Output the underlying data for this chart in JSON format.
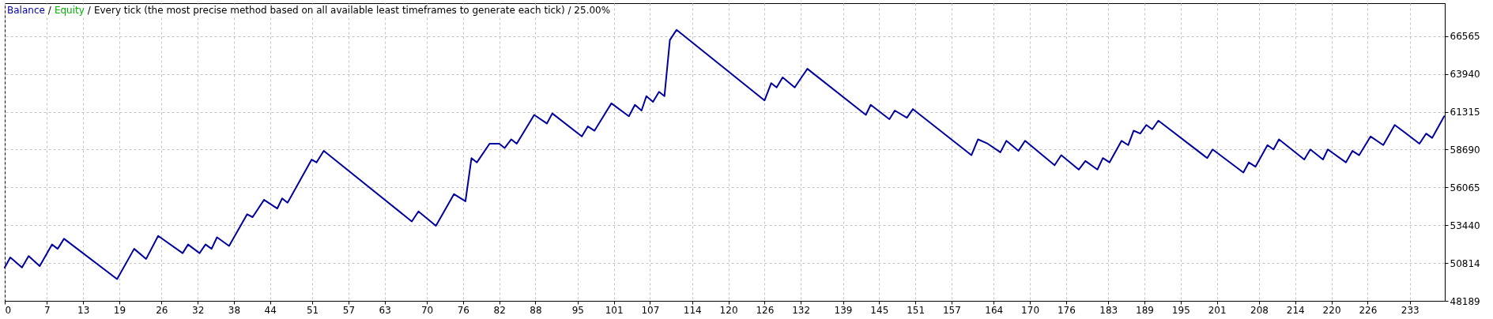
{
  "chart_data": {
    "type": "line",
    "title": "Every tick (the most precise method based on all available least timeframes to generate each tick) / 25.00%",
    "annotations": [
      "/",
      "/"
    ],
    "x": [
      0,
      0.92,
      2.86,
      3.96,
      5.8,
      7.83,
      8.78,
      9.83,
      18.63,
      21.46,
      23.45,
      25.44,
      29.5,
      30.4,
      32.3,
      33.3,
      34.3,
      35.2,
      37.2,
      40.2,
      41.1,
      43.0,
      45.2,
      46.0,
      46.9,
      50.9,
      51.7,
      52.9,
      67.5,
      68.6,
      71.5,
      74.5,
      76.4,
      77.4,
      78.3,
      80.4,
      82.0,
      82.9,
      84.0,
      84.9,
      87.8,
      89.9,
      90.8,
      95.7,
      96.7,
      97.8,
      100.6,
      103.5,
      104.5,
      105.6,
      106.4,
      107.5,
      108.5,
      109.4,
      110.3,
      111.4,
      126.0,
      127.1,
      128.0,
      129.0,
      131.0,
      133.1,
      142.8,
      143.6,
      146.7,
      147.6,
      149.6,
      150.6,
      160.3,
      161.4,
      163.0,
      165.1,
      166.1,
      168.1,
      169.2,
      174.1,
      175.2,
      178.1,
      179.2,
      181.2,
      182.1,
      183.2,
      185.2,
      186.3,
      187.2,
      188.3,
      189.3,
      190.3,
      191.3,
      199.4,
      200.3,
      205.4,
      206.3,
      207.4,
      209.4,
      210.4,
      211.3,
      215.5,
      216.5,
      218.6,
      219.4,
      222.4,
      223.5,
      224.6,
      226.5,
      228.6,
      230.5,
      234.6,
      235.7,
      236.7,
      238.7
    ],
    "series": [
      {
        "name": "Balance",
        "color": "#0000a0",
        "values": [
          50500,
          51200,
          50500,
          51300,
          50600,
          52100,
          51800,
          52500,
          49700,
          51800,
          51100,
          52700,
          51500,
          52100,
          51500,
          52100,
          51800,
          52600,
          52000,
          54200,
          54000,
          55200,
          54600,
          55300,
          55000,
          58000,
          57800,
          58600,
          53700,
          54400,
          53400,
          55600,
          55100,
          58100,
          57800,
          59100,
          59100,
          58800,
          59400,
          59100,
          61100,
          60500,
          61200,
          59600,
          60300,
          60000,
          61900,
          61000,
          61800,
          61400,
          62400,
          62000,
          62700,
          62400,
          66300,
          67000,
          62100,
          63300,
          63000,
          63700,
          63000,
          64300,
          61100,
          61800,
          60800,
          61400,
          60900,
          61500,
          58300,
          59400,
          59100,
          58500,
          59300,
          58600,
          59300,
          57600,
          58300,
          57300,
          57900,
          57300,
          58100,
          57800,
          59300,
          59000,
          60000,
          59800,
          60400,
          60100,
          60700,
          58100,
          58700,
          57100,
          57800,
          57500,
          59000,
          58700,
          59400,
          58000,
          58700,
          58000,
          58700,
          57800,
          58600,
          58300,
          59600,
          59000,
          60400,
          59100,
          59800,
          59500,
          61000
        ]
      },
      {
        "name": "Equity",
        "color": "#00b400",
        "values": [
          null,
          null,
          null,
          null,
          null,
          null,
          null,
          null,
          null,
          null,
          null,
          null,
          null,
          null,
          null,
          null,
          null,
          null,
          null,
          null,
          null,
          null,
          null,
          null,
          null,
          null,
          null,
          null,
          null,
          null,
          null,
          null,
          null,
          null,
          null,
          null,
          null,
          null,
          null,
          null,
          null,
          null,
          null,
          null,
          null,
          null,
          null,
          null,
          null,
          null,
          null,
          null,
          null,
          null,
          null,
          null,
          null,
          null,
          null,
          null,
          null,
          null,
          null,
          null,
          null,
          null,
          null,
          null,
          null,
          null,
          null,
          null,
          null,
          null,
          null,
          null,
          null,
          null,
          null,
          null,
          null,
          null,
          null,
          null,
          null,
          null,
          null,
          null,
          null,
          null,
          null,
          null,
          null,
          null,
          null,
          null,
          null,
          null,
          null,
          null,
          null,
          null,
          null,
          null,
          null,
          null,
          null,
          null,
          null,
          null,
          null
        ]
      }
    ],
    "xlim": [
      0,
      238.8
    ],
    "xticks": [
      0,
      7,
      13,
      19,
      26,
      32,
      38,
      44,
      51,
      57,
      63,
      70,
      76,
      82,
      88,
      95,
      101,
      107,
      114,
      120,
      126,
      132,
      139,
      145,
      151,
      157,
      164,
      170,
      176,
      183,
      189,
      195,
      201,
      208,
      214,
      220,
      226,
      233
    ],
    "ylim": [
      48189,
      68855
    ],
    "yticks": [
      48189,
      50814,
      53440,
      56065,
      58690,
      61315,
      63940,
      66565
    ],
    "grid": true
  }
}
